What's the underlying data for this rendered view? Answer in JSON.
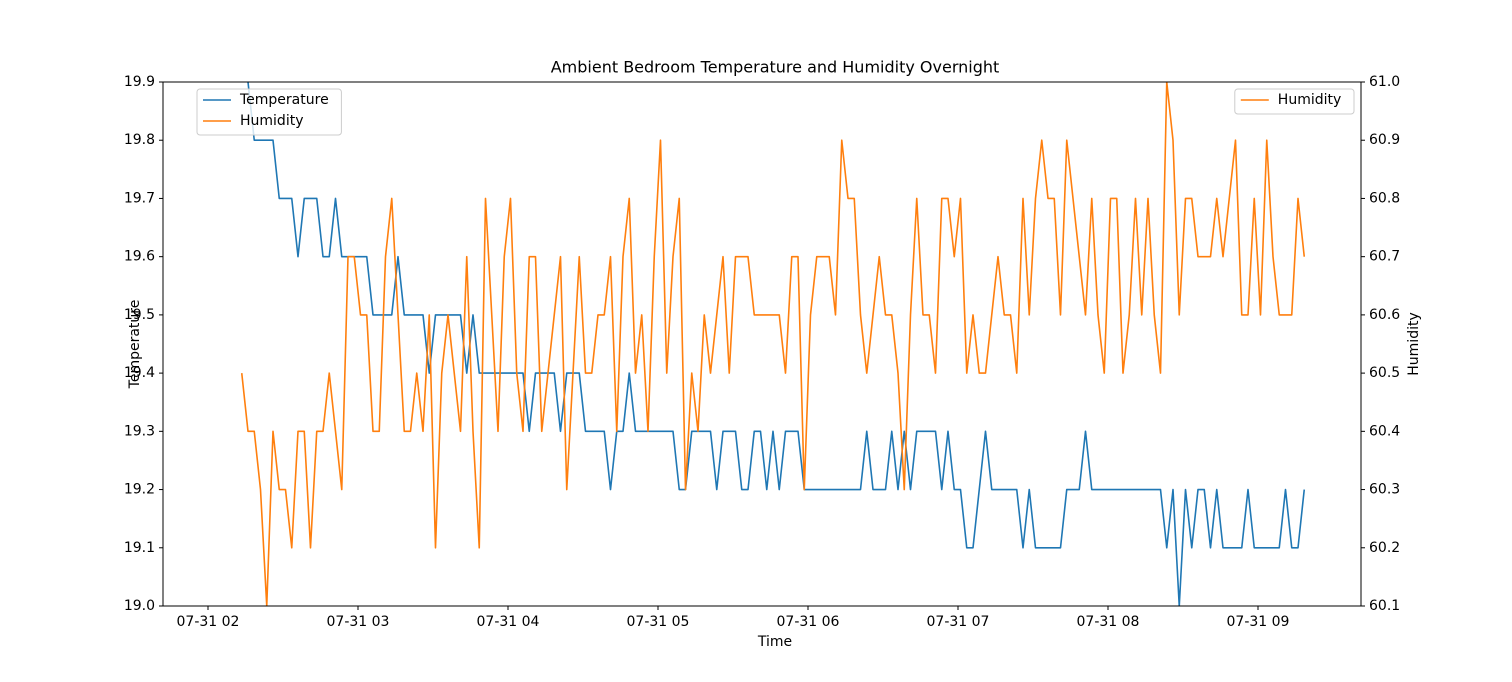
{
  "chart_data": {
    "type": "line",
    "title": "Ambient Bedroom Temperature and Humidity Overnight",
    "xlabel": "Time",
    "ylabel": "Temperature",
    "y2label": "Humidity",
    "x": [
      "07-31 02:13:30",
      "07-31 02:16:00",
      "07-31 02:18:30",
      "07-31 02:21:00",
      "07-31 02:23:30",
      "07-31 02:26:00",
      "07-31 02:28:30",
      "07-31 02:31:00",
      "07-31 02:33:30",
      "07-31 02:36:00",
      "07-31 02:38:30",
      "07-31 02:41:00",
      "07-31 02:43:30",
      "07-31 02:46:00",
      "07-31 02:48:30",
      "07-31 02:51:00",
      "07-31 02:53:30",
      "07-31 02:56:00",
      "07-31 02:58:30",
      "07-31 03:01:00",
      "07-31 03:03:30",
      "07-31 03:06:00",
      "07-31 03:08:30",
      "07-31 03:11:00",
      "07-31 03:13:30",
      "07-31 03:16:00",
      "07-31 03:18:30",
      "07-31 03:21:00",
      "07-31 03:23:30",
      "07-31 03:26:00",
      "07-31 03:28:30",
      "07-31 03:31:00",
      "07-31 03:33:30",
      "07-31 03:36:00",
      "07-31 03:38:30",
      "07-31 03:41:00",
      "07-31 03:43:30",
      "07-31 03:46:00",
      "07-31 03:48:30",
      "07-31 03:51:00",
      "07-31 03:53:30",
      "07-31 03:56:00",
      "07-31 03:58:30",
      "07-31 04:01:00",
      "07-31 04:03:30",
      "07-31 04:06:00",
      "07-31 04:08:30",
      "07-31 04:11:00",
      "07-31 04:13:30",
      "07-31 04:16:00",
      "07-31 04:18:30",
      "07-31 04:21:00",
      "07-31 04:23:30",
      "07-31 04:26:00",
      "07-31 04:28:30",
      "07-31 04:31:00",
      "07-31 04:33:30",
      "07-31 04:36:00",
      "07-31 04:38:30",
      "07-31 04:41:00",
      "07-31 04:43:30",
      "07-31 04:46:00",
      "07-31 04:48:30",
      "07-31 04:51:00",
      "07-31 04:53:30",
      "07-31 04:56:00",
      "07-31 04:58:30",
      "07-31 05:01:00",
      "07-31 05:03:30",
      "07-31 05:06:00",
      "07-31 05:08:30",
      "07-31 05:11:00",
      "07-31 05:13:30",
      "07-31 05:16:00",
      "07-31 05:18:30",
      "07-31 05:21:00",
      "07-31 05:23:30",
      "07-31 05:26:00",
      "07-31 05:28:30",
      "07-31 05:31:00",
      "07-31 05:33:30",
      "07-31 05:36:00",
      "07-31 05:38:30",
      "07-31 05:41:00",
      "07-31 05:43:30",
      "07-31 05:46:00",
      "07-31 05:48:30",
      "07-31 05:51:00",
      "07-31 05:53:30",
      "07-31 05:56:00",
      "07-31 05:58:30",
      "07-31 06:01:00",
      "07-31 06:03:30",
      "07-31 06:06:00",
      "07-31 06:08:30",
      "07-31 06:11:00",
      "07-31 06:13:30",
      "07-31 06:16:00",
      "07-31 06:18:30",
      "07-31 06:21:00",
      "07-31 06:23:30",
      "07-31 06:26:00",
      "07-31 06:28:30",
      "07-31 06:31:00",
      "07-31 06:33:30",
      "07-31 06:36:00",
      "07-31 06:38:30",
      "07-31 06:41:00",
      "07-31 06:43:30",
      "07-31 06:46:00",
      "07-31 06:48:30",
      "07-31 06:51:00",
      "07-31 06:53:30",
      "07-31 06:56:00",
      "07-31 06:58:30",
      "07-31 07:01:00",
      "07-31 07:03:30",
      "07-31 07:06:00",
      "07-31 07:08:30",
      "07-31 07:11:00",
      "07-31 07:13:30",
      "07-31 07:16:00",
      "07-31 07:18:30",
      "07-31 07:21:00",
      "07-31 07:23:30",
      "07-31 07:26:00",
      "07-31 07:28:30",
      "07-31 07:31:00",
      "07-31 07:33:30",
      "07-31 07:36:00",
      "07-31 07:38:30",
      "07-31 07:41:00",
      "07-31 07:43:30",
      "07-31 07:46:00",
      "07-31 07:48:30",
      "07-31 07:51:00",
      "07-31 07:53:30",
      "07-31 07:56:00",
      "07-31 07:58:30",
      "07-31 08:01:00",
      "07-31 08:03:30",
      "07-31 08:06:00",
      "07-31 08:08:30",
      "07-31 08:11:00",
      "07-31 08:13:30",
      "07-31 08:16:00",
      "07-31 08:18:30",
      "07-31 08:21:00",
      "07-31 08:23:30",
      "07-31 08:26:00",
      "07-31 08:28:30",
      "07-31 08:31:00",
      "07-31 08:33:30",
      "07-31 08:36:00",
      "07-31 08:38:30",
      "07-31 08:41:00",
      "07-31 08:43:30",
      "07-31 08:46:00",
      "07-31 08:48:30",
      "07-31 08:51:00",
      "07-31 08:53:30",
      "07-31 08:56:00",
      "07-31 08:58:30",
      "07-31 09:01:00",
      "07-31 09:03:30",
      "07-31 09:06:00",
      "07-31 09:08:30",
      "07-31 09:11:00",
      "07-31 09:13:30",
      "07-31 09:16:00",
      "07-31 09:18:30"
    ],
    "series": [
      {
        "name": "Temperature",
        "color": "#1f77b4",
        "values": [
          20,
          19.9,
          19.8,
          19.8,
          19.8,
          19.8,
          19.7,
          19.7,
          19.7,
          19.6,
          19.7,
          19.7,
          19.7,
          19.6,
          19.6,
          19.7,
          19.6,
          19.6,
          19.6,
          19.6,
          19.6,
          19.5,
          19.5,
          19.5,
          19.5,
          19.6,
          19.5,
          19.5,
          19.5,
          19.5,
          19.4,
          19.5,
          19.5,
          19.5,
          19.5,
          19.5,
          19.4,
          19.5,
          19.4,
          19.4,
          19.4,
          19.4,
          19.4,
          19.4,
          19.4,
          19.4,
          19.3,
          19.4,
          19.4,
          19.4,
          19.4,
          19.3,
          19.4,
          19.4,
          19.4,
          19.3,
          19.3,
          19.3,
          19.3,
          19.2,
          19.3,
          19.3,
          19.4,
          19.3,
          19.3,
          19.3,
          19.3,
          19.3,
          19.3,
          19.3,
          19.2,
          19.2,
          19.3,
          19.3,
          19.3,
          19.3,
          19.2,
          19.3,
          19.3,
          19.3,
          19.2,
          19.2,
          19.3,
          19.3,
          19.2,
          19.3,
          19.2,
          19.3,
          19.3,
          19.3,
          19.2,
          19.2,
          19.2,
          19.2,
          19.2,
          19.2,
          19.2,
          19.2,
          19.2,
          19.2,
          19.3,
          19.2,
          19.2,
          19.2,
          19.3,
          19.2,
          19.3,
          19.2,
          19.3,
          19.3,
          19.3,
          19.3,
          19.2,
          19.3,
          19.2,
          19.2,
          19.1,
          19.1,
          19.2,
          19.3,
          19.2,
          19.2,
          19.2,
          19.2,
          19.2,
          19.1,
          19.2,
          19.1,
          19.1,
          19.1,
          19.1,
          19.1,
          19.2,
          19.2,
          19.2,
          19.3,
          19.2,
          19.2,
          19.2,
          19.2,
          19.2,
          19.2,
          19.2,
          19.2,
          19.2,
          19.2,
          19.2,
          19.2,
          19.1,
          19.2,
          19,
          19.2,
          19.1,
          19.2,
          19.2,
          19.1,
          19.2,
          19.1,
          19.1,
          19.1,
          19.1,
          19.2,
          19.1,
          19.1,
          19.1,
          19.1,
          19.1,
          19.2,
          19.1,
          19.1,
          19.2
        ]
      },
      {
        "name": "Humidity",
        "color": "#ff7f0e",
        "axis": "y2",
        "values": [
          60.5,
          60.4,
          60.4,
          60.3,
          60.1,
          60.4,
          60.3,
          60.3,
          60.2,
          60.4,
          60.4,
          60.2,
          60.4,
          60.4,
          60.5,
          60.4,
          60.3,
          60.7,
          60.7,
          60.6,
          60.6,
          60.4,
          60.4,
          60.7,
          60.8,
          60.6,
          60.4,
          60.4,
          60.5,
          60.4,
          60.6,
          60.2,
          60.5,
          60.6,
          60.5,
          60.4,
          60.7,
          60.4,
          60.2,
          60.8,
          60.6,
          60.4,
          60.7,
          60.8,
          60.5,
          60.4,
          60.7,
          60.7,
          60.4,
          60.5,
          60.6,
          60.7,
          60.3,
          60.5,
          60.7,
          60.5,
          60.5,
          60.6,
          60.6,
          60.7,
          60.4,
          60.7,
          60.8,
          60.5,
          60.6,
          60.4,
          60.7,
          60.9,
          60.5,
          60.7,
          60.8,
          60.3,
          60.5,
          60.4,
          60.6,
          60.5,
          60.6,
          60.7,
          60.5,
          60.7,
          60.7,
          60.7,
          60.6,
          60.6,
          60.6,
          60.6,
          60.6,
          60.5,
          60.7,
          60.7,
          60.3,
          60.6,
          60.7,
          60.7,
          60.7,
          60.6,
          60.9,
          60.8,
          60.8,
          60.6,
          60.5,
          60.6,
          60.7,
          60.6,
          60.6,
          60.5,
          60.3,
          60.6,
          60.8,
          60.6,
          60.6,
          60.5,
          60.8,
          60.8,
          60.7,
          60.8,
          60.5,
          60.6,
          60.5,
          60.5,
          60.6,
          60.7,
          60.6,
          60.6,
          60.5,
          60.8,
          60.6,
          60.8,
          60.9,
          60.8,
          60.8,
          60.6,
          60.9,
          60.8,
          60.7,
          60.6,
          60.8,
          60.6,
          60.5,
          60.8,
          60.8,
          60.5,
          60.6,
          60.8,
          60.6,
          60.8,
          60.6,
          60.5,
          61,
          60.9,
          60.6,
          60.8,
          60.8,
          60.7,
          60.7,
          60.7,
          60.8,
          60.7,
          60.8,
          60.9,
          60.6,
          60.6,
          60.8,
          60.6,
          60.9,
          60.7,
          60.6,
          60.6,
          60.6,
          60.8,
          60.7
        ]
      }
    ],
    "xlim": [
      "07-31 01:42:00",
      "07-31 09:41:12"
    ],
    "xticks": [
      {
        "value": "07-31 02:00:00",
        "label": "07-31 02"
      },
      {
        "value": "07-31 03:00:00",
        "label": "07-31 03"
      },
      {
        "value": "07-31 04:00:00",
        "label": "07-31 04"
      },
      {
        "value": "07-31 05:00:00",
        "label": "07-31 05"
      },
      {
        "value": "07-31 06:00:00",
        "label": "07-31 06"
      },
      {
        "value": "07-31 07:00:00",
        "label": "07-31 07"
      },
      {
        "value": "07-31 08:00:00",
        "label": "07-31 08"
      },
      {
        "value": "07-31 09:00:00",
        "label": "07-31 09"
      }
    ],
    "ylim": [
      19,
      19.9
    ],
    "yticks": [
      {
        "value": 19,
        "label": "19.0"
      },
      19.1,
      19.2,
      19.3,
      19.4,
      19.5,
      19.6,
      19.7,
      19.8,
      19.9
    ],
    "y2lim": [
      60.1,
      61
    ],
    "y2ticks": [
      60.1,
      60.2,
      60.3,
      60.4,
      60.5,
      60.6,
      60.7,
      60.8,
      60.9,
      {
        "value": 61,
        "label": "61.0"
      }
    ],
    "legend": "upper left",
    "y2_legend": "upper right",
    "grid": false
  }
}
